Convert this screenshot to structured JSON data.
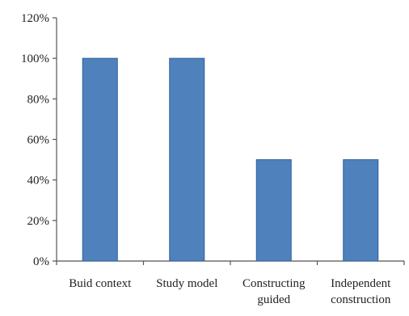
{
  "chart_data": {
    "type": "bar",
    "categories": [
      [
        "Buid context"
      ],
      [
        "Study model"
      ],
      [
        "Constructing",
        "guided"
      ],
      [
        "Independent",
        "construction"
      ]
    ],
    "values": [
      100,
      100,
      50,
      50
    ],
    "value_unit": "%",
    "ylim": [
      0,
      120
    ],
    "y_ticks": [
      0,
      20,
      40,
      60,
      80,
      100,
      120
    ],
    "y_tick_labels": [
      "0%",
      "20%",
      "40%",
      "60%",
      "80%",
      "100%",
      "120%"
    ],
    "title": "",
    "xlabel": "",
    "ylabel": "",
    "grid": false,
    "legend": "none",
    "colors": {
      "bar_fill": "#4f81bd",
      "bar_stroke": "#2f5f96",
      "axis": "#555555",
      "text": "#222222"
    }
  }
}
